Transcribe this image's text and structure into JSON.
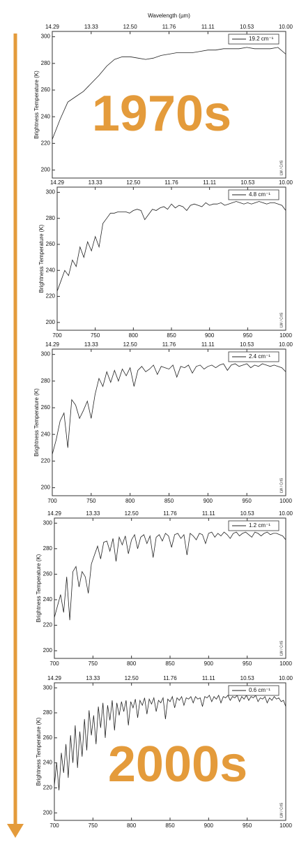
{
  "chart_data": [
    {
      "type": "line",
      "x2_label": "Wavelength (µm)",
      "y_label": "Brightness Temperature (K)",
      "annotation": "1970s",
      "note": "LW / CrIS",
      "xlim": [
        700,
        1000
      ],
      "ylim": [
        194,
        304
      ],
      "yticks": [
        200,
        220,
        240,
        260,
        280,
        300
      ],
      "x2ticks": [
        {
          "value": 700,
          "label": "14.29"
        },
        {
          "value": 750,
          "label": "13.33"
        },
        {
          "value": 800,
          "label": "12.50"
        },
        {
          "value": 850,
          "label": "11.76"
        },
        {
          "value": 900,
          "label": "11.11"
        },
        {
          "value": 950,
          "label": "10.53"
        },
        {
          "value": 1000,
          "label": "10.00"
        }
      ],
      "x": [
        700,
        710,
        720,
        730,
        740,
        750,
        760,
        770,
        780,
        790,
        800,
        810,
        820,
        830,
        840,
        850,
        860,
        870,
        880,
        890,
        900,
        910,
        920,
        930,
        940,
        950,
        960,
        970,
        980,
        990,
        1000
      ],
      "series": [
        {
          "name": "19.2 cm⁻¹",
          "color": "#222222",
          "values": [
            223,
            238,
            251,
            255,
            259,
            265,
            271,
            278,
            283,
            285,
            285,
            284,
            283,
            284,
            286,
            287,
            288,
            288,
            288,
            289,
            290,
            290,
            291,
            291,
            291,
            292,
            291,
            291,
            291,
            292,
            287
          ]
        }
      ]
    },
    {
      "type": "line",
      "y_label": "Brightness Temperature (K)",
      "note": "LW / CrIS",
      "xlim": [
        700,
        1000
      ],
      "ylim": [
        194,
        304
      ],
      "yticks": [
        200,
        220,
        240,
        260,
        280,
        300
      ],
      "xticks": [
        700,
        750,
        800,
        850,
        900,
        950,
        1000
      ],
      "x2ticks": [
        {
          "value": 700,
          "label": "14.29"
        },
        {
          "value": 750,
          "label": "13.33"
        },
        {
          "value": 800,
          "label": "12.50"
        },
        {
          "value": 850,
          "label": "11.76"
        },
        {
          "value": 900,
          "label": "11.11"
        },
        {
          "value": 950,
          "label": "10.53"
        },
        {
          "value": 1000,
          "label": "10.00"
        }
      ],
      "x": [
        700,
        705,
        710,
        715,
        720,
        725,
        730,
        735,
        740,
        745,
        750,
        755,
        760,
        765,
        770,
        775,
        780,
        785,
        790,
        795,
        800,
        805,
        810,
        815,
        820,
        825,
        830,
        835,
        840,
        845,
        850,
        855,
        860,
        865,
        870,
        875,
        880,
        885,
        890,
        895,
        900,
        905,
        910,
        915,
        920,
        925,
        930,
        935,
        940,
        945,
        950,
        955,
        960,
        965,
        970,
        975,
        980,
        985,
        990,
        995,
        1000
      ],
      "series": [
        {
          "name": "4.8 cm⁻¹",
          "color": "#222222",
          "values": [
            224,
            232,
            240,
            236,
            248,
            243,
            258,
            250,
            262,
            255,
            266,
            258,
            276,
            280,
            284,
            284,
            285,
            285,
            285,
            284,
            286,
            287,
            286,
            279,
            283,
            287,
            286,
            288,
            289,
            287,
            291,
            288,
            290,
            289,
            286,
            290,
            291,
            290,
            289,
            292,
            290,
            291,
            291,
            292,
            290,
            291,
            292,
            293,
            292,
            291,
            292,
            291,
            292,
            293,
            292,
            291,
            292,
            292,
            291,
            290,
            286
          ]
        }
      ]
    },
    {
      "type": "line",
      "y_label": "Brightness Temperature (K)",
      "note": "LW / CrIS",
      "xlim": [
        700,
        1000
      ],
      "ylim": [
        194,
        304
      ],
      "yticks": [
        200,
        220,
        240,
        260,
        280,
        300
      ],
      "xticks": [
        700,
        750,
        800,
        850,
        900,
        950,
        1000
      ],
      "x2ticks": [
        {
          "value": 700,
          "label": "14.29"
        },
        {
          "value": 750,
          "label": "13.33"
        },
        {
          "value": 800,
          "label": "12.50"
        },
        {
          "value": 850,
          "label": "11.76"
        },
        {
          "value": 900,
          "label": "11.11"
        },
        {
          "value": 950,
          "label": "10.53"
        },
        {
          "value": 1000,
          "label": "10.00"
        }
      ],
      "x": [
        700,
        705,
        710,
        715,
        720,
        725,
        730,
        735,
        740,
        745,
        750,
        755,
        760,
        765,
        770,
        775,
        780,
        785,
        790,
        795,
        800,
        805,
        810,
        815,
        820,
        825,
        830,
        835,
        840,
        845,
        850,
        855,
        860,
        865,
        870,
        875,
        880,
        885,
        890,
        895,
        900,
        905,
        910,
        915,
        920,
        925,
        930,
        935,
        940,
        945,
        950,
        955,
        960,
        965,
        970,
        975,
        980,
        985,
        990,
        995,
        1000
      ],
      "series": [
        {
          "name": "2.4 cm⁻¹",
          "color": "#222222",
          "values": [
            225,
            236,
            250,
            256,
            230,
            266,
            262,
            252,
            258,
            265,
            252,
            270,
            282,
            276,
            287,
            279,
            288,
            280,
            289,
            284,
            290,
            276,
            288,
            291,
            287,
            289,
            292,
            285,
            291,
            290,
            289,
            292,
            283,
            291,
            290,
            292,
            286,
            291,
            292,
            289,
            291,
            292,
            290,
            292,
            293,
            288,
            292,
            293,
            291,
            292,
            293,
            290,
            292,
            291,
            293,
            292,
            291,
            292,
            291,
            290,
            287
          ]
        }
      ]
    },
    {
      "type": "line",
      "y_label": "Brightness Temperature (K)",
      "note": "LW / CrIS",
      "xlim": [
        700,
        1000
      ],
      "ylim": [
        194,
        304
      ],
      "yticks": [
        200,
        220,
        240,
        260,
        280,
        300
      ],
      "xticks": [
        700,
        750,
        800,
        850,
        900,
        950,
        1000
      ],
      "x2ticks": [
        {
          "value": 700,
          "label": "14.29"
        },
        {
          "value": 750,
          "label": "13.33"
        },
        {
          "value": 800,
          "label": "12.50"
        },
        {
          "value": 850,
          "label": "11.76"
        },
        {
          "value": 900,
          "label": "11.11"
        },
        {
          "value": 950,
          "label": "10.53"
        },
        {
          "value": 1000,
          "label": "10.00"
        }
      ],
      "x": [
        700,
        704,
        708,
        712,
        716,
        720,
        724,
        728,
        732,
        736,
        740,
        744,
        748,
        752,
        756,
        760,
        764,
        768,
        772,
        776,
        780,
        784,
        788,
        792,
        796,
        800,
        804,
        808,
        812,
        816,
        820,
        824,
        828,
        832,
        836,
        840,
        844,
        848,
        852,
        856,
        860,
        864,
        868,
        872,
        876,
        880,
        884,
        888,
        892,
        896,
        900,
        904,
        908,
        912,
        916,
        920,
        924,
        928,
        932,
        936,
        940,
        944,
        948,
        952,
        956,
        960,
        964,
        968,
        972,
        976,
        980,
        984,
        988,
        992,
        996,
        1000
      ],
      "series": [
        {
          "name": "1.2 cm⁻¹",
          "color": "#222222",
          "values": [
            226,
            235,
            244,
            230,
            258,
            224,
            262,
            266,
            250,
            262,
            258,
            245,
            268,
            275,
            282,
            272,
            285,
            286,
            278,
            288,
            270,
            289,
            283,
            290,
            276,
            287,
            291,
            280,
            289,
            291,
            284,
            290,
            273,
            289,
            291,
            286,
            292,
            290,
            281,
            291,
            292,
            288,
            291,
            275,
            292,
            290,
            287,
            292,
            291,
            284,
            292,
            293,
            289,
            292,
            290,
            293,
            291,
            288,
            292,
            293,
            290,
            292,
            293,
            291,
            289,
            293,
            292,
            290,
            292,
            293,
            291,
            292,
            292,
            291,
            290,
            287
          ]
        }
      ]
    },
    {
      "type": "line",
      "y_label": "Brightness Temperature (K)",
      "annotation": "2000s",
      "note": "LW / CrIS",
      "xlim": [
        700,
        1000
      ],
      "ylim": [
        194,
        304
      ],
      "yticks": [
        200,
        220,
        240,
        260,
        280,
        300
      ],
      "xticks": [
        700,
        750,
        800,
        850,
        900,
        950,
        1000
      ],
      "x2ticks": [
        {
          "value": 700,
          "label": "14.29"
        },
        {
          "value": 750,
          "label": "13.33"
        },
        {
          "value": 800,
          "label": "12.50"
        },
        {
          "value": 850,
          "label": "11.76"
        },
        {
          "value": 900,
          "label": "11.11"
        },
        {
          "value": 950,
          "label": "10.53"
        },
        {
          "value": 1000,
          "label": "10.00"
        }
      ],
      "x": [
        700,
        703,
        706,
        709,
        712,
        715,
        718,
        721,
        724,
        727,
        730,
        733,
        736,
        739,
        742,
        745,
        748,
        751,
        754,
        757,
        760,
        763,
        766,
        769,
        772,
        775,
        778,
        781,
        784,
        787,
        790,
        793,
        796,
        799,
        802,
        805,
        808,
        811,
        814,
        817,
        820,
        823,
        826,
        829,
        832,
        835,
        838,
        841,
        844,
        847,
        850,
        853,
        856,
        859,
        862,
        865,
        868,
        871,
        874,
        877,
        880,
        883,
        886,
        889,
        892,
        895,
        898,
        901,
        904,
        907,
        910,
        913,
        916,
        919,
        922,
        925,
        928,
        931,
        934,
        937,
        940,
        943,
        946,
        949,
        952,
        955,
        958,
        961,
        964,
        967,
        970,
        973,
        976,
        979,
        982,
        985,
        988,
        991,
        994,
        997,
        1000
      ],
      "series": [
        {
          "name": "0.6 cm⁻¹",
          "color": "#222222",
          "values": [
            222,
            240,
            218,
            248,
            232,
            255,
            228,
            262,
            240,
            270,
            236,
            265,
            245,
            275,
            250,
            282,
            262,
            278,
            255,
            285,
            268,
            288,
            260,
            286,
            274,
            290,
            266,
            288,
            278,
            289,
            281,
            290,
            270,
            289,
            284,
            291,
            276,
            290,
            286,
            292,
            279,
            291,
            287,
            292,
            281,
            290,
            288,
            292,
            275,
            291,
            289,
            293,
            284,
            292,
            290,
            293,
            286,
            292,
            291,
            293,
            288,
            293,
            291,
            292,
            285,
            293,
            292,
            294,
            289,
            293,
            291,
            294,
            288,
            293,
            292,
            294,
            290,
            293,
            292,
            294,
            289,
            293,
            291,
            294,
            290,
            293,
            292,
            294,
            289,
            292,
            291,
            293,
            288,
            292,
            290,
            293,
            291,
            292,
            289,
            290,
            285
          ]
        }
      ]
    }
  ]
}
